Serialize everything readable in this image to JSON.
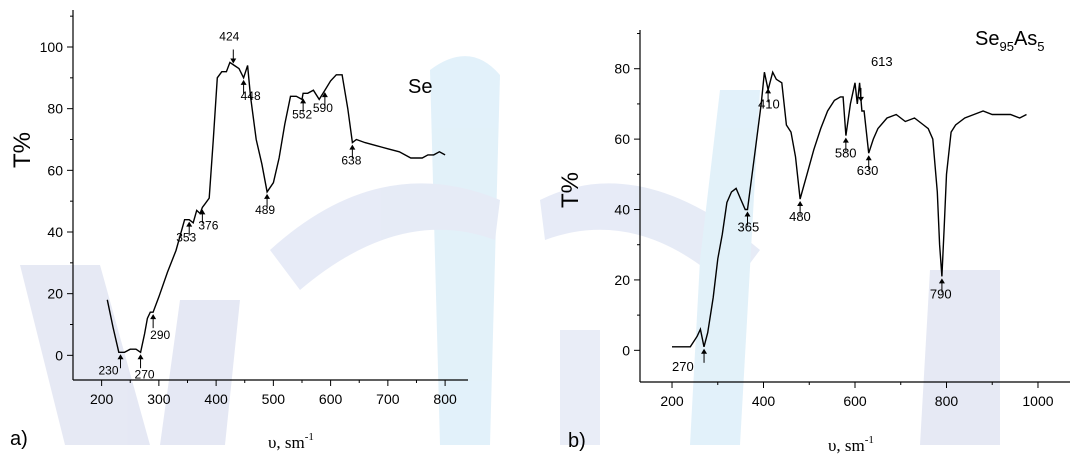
{
  "chart_data": [
    {
      "type": "line",
      "panel_label": "a)",
      "title": "Se",
      "xlabel": "υ, sm",
      "xlabel_sup": "-1",
      "ylabel": "T%",
      "xlim": [
        150,
        840
      ],
      "ylim": [
        -8,
        112
      ],
      "xticks": [
        "200",
        "300",
        "400",
        "500",
        "600",
        "700",
        "800"
      ],
      "yticks": [
        "0",
        "20",
        "40",
        "60",
        "80",
        "100"
      ],
      "grid": false,
      "x": [
        210,
        220,
        230,
        240,
        250,
        260,
        268,
        275,
        280,
        285,
        290,
        300,
        315,
        330,
        345,
        353,
        360,
        366,
        372,
        376,
        380,
        388,
        395,
        402,
        410,
        418,
        424,
        432,
        440,
        448,
        455,
        460,
        470,
        480,
        489,
        500,
        510,
        520,
        530,
        540,
        550,
        552,
        560,
        570,
        580,
        590,
        600,
        610,
        620,
        630,
        638,
        645,
        660,
        680,
        700,
        720,
        740,
        750,
        760,
        770,
        780,
        790,
        800
      ],
      "values": [
        18,
        9,
        1,
        1,
        2,
        2,
        1,
        7,
        12,
        14,
        14,
        19,
        27,
        34,
        44,
        44,
        43,
        47,
        46,
        48,
        49,
        51,
        70,
        90,
        92,
        92,
        95,
        94,
        93,
        90,
        94,
        84,
        70,
        62,
        53,
        56,
        64,
        75,
        84,
        84,
        83,
        85,
        85,
        86,
        83,
        86,
        89,
        91,
        91,
        80,
        69,
        70,
        69,
        68,
        67,
        66,
        64,
        64,
        64,
        65,
        65,
        66,
        65
      ],
      "annotations": [
        {
          "label": "230",
          "x": 233,
          "y": 1
        },
        {
          "label": "270",
          "x": 268,
          "y": 1
        },
        {
          "label": "290",
          "x": 290,
          "y": 14
        },
        {
          "label": "353",
          "x": 353,
          "y": 44
        },
        {
          "label": "376",
          "x": 376,
          "y": 48
        },
        {
          "label": "424",
          "x": 430,
          "y": 94
        },
        {
          "label": "448",
          "x": 448,
          "y": 90
        },
        {
          "label": "489",
          "x": 489,
          "y": 53
        },
        {
          "label": "552",
          "x": 552,
          "y": 84
        },
        {
          "label": "590",
          "x": 590,
          "y": 86
        },
        {
          "label": "638",
          "x": 638,
          "y": 69
        }
      ]
    },
    {
      "type": "line",
      "panel_label": "b)",
      "title": "Se",
      "title_sub1": "95",
      "title_mid": "As",
      "title_sub2": "5",
      "xlabel": "υ,  sm",
      "xlabel_sup": "-1",
      "ylabel": "T%",
      "xlim": [
        130,
        1070
      ],
      "ylim": [
        -9,
        91
      ],
      "xticks": [
        "200",
        "400",
        "600",
        "800",
        "1000"
      ],
      "yticks": [
        "0",
        "20",
        "40",
        "60",
        "80"
      ],
      "grid": false,
      "x": [
        200,
        220,
        240,
        255,
        262,
        270,
        278,
        290,
        300,
        310,
        320,
        330,
        340,
        350,
        360,
        365,
        380,
        395,
        402,
        410,
        420,
        428,
        440,
        450,
        460,
        470,
        480,
        495,
        510,
        525,
        540,
        555,
        568,
        574,
        580,
        590,
        600,
        605,
        610,
        615,
        620,
        630,
        640,
        650,
        670,
        690,
        710,
        730,
        750,
        760,
        770,
        780,
        785,
        790,
        795,
        800,
        810,
        820,
        840,
        860,
        880,
        900,
        920,
        940,
        960,
        975
      ],
      "values": [
        1,
        1,
        1,
        4,
        6,
        1,
        5,
        15,
        26,
        33,
        42,
        45,
        46,
        43,
        40,
        40,
        55,
        70,
        79,
        74,
        79,
        77,
        76,
        64,
        62,
        55,
        43,
        50,
        57,
        63,
        68,
        71,
        72,
        72,
        61,
        70,
        76,
        70,
        76,
        68,
        68,
        56,
        60,
        63,
        66,
        67,
        65,
        66,
        64,
        63,
        60,
        45,
        30,
        21,
        35,
        50,
        62,
        64,
        66,
        67,
        68,
        67,
        67,
        67,
        66,
        67
      ],
      "annotations": [
        {
          "label": "270",
          "x": 270,
          "y": 1
        },
        {
          "label": "365",
          "x": 365,
          "y": 40
        },
        {
          "label": "410",
          "x": 410,
          "y": 75
        },
        {
          "label": "480",
          "x": 480,
          "y": 43
        },
        {
          "label": "580",
          "x": 580,
          "y": 61
        },
        {
          "label": "613",
          "x": 613,
          "y": 70
        },
        {
          "label": "630",
          "x": 630,
          "y": 56
        },
        {
          "label": "790",
          "x": 790,
          "y": 21
        }
      ]
    }
  ]
}
